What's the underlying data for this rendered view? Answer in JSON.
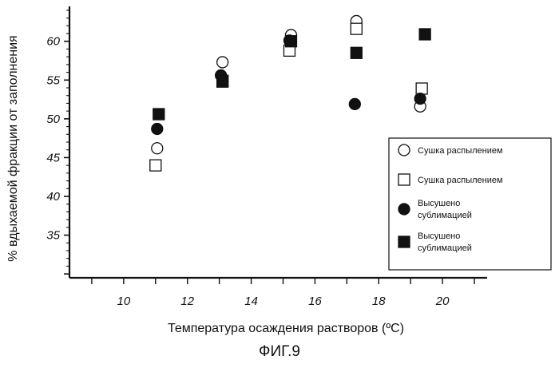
{
  "figure_caption": "ФИГ.9",
  "chart_data": {
    "type": "scatter",
    "xlabel": "Температура осаждения растворов (ºC)",
    "ylabel": "% вдыхаемой фракции от заполнения",
    "xlim": [
      8.3,
      21.4
    ],
    "ylim": [
      29.5,
      64.5
    ],
    "xticks": [
      10,
      12,
      14,
      16,
      18,
      20
    ],
    "yticks": [
      35,
      40,
      45,
      50,
      55,
      60
    ],
    "grid": false,
    "legend_position": "right",
    "series": [
      {
        "name": "Сушка распылением",
        "marker": "circle-open",
        "x": [
          11.05,
          13.1,
          15.25,
          17.3,
          19.3
        ],
        "y": [
          46.2,
          57.3,
          60.8,
          62.6,
          51.6
        ]
      },
      {
        "name": "Сушка распылением",
        "marker": "square-open",
        "x": [
          11.0,
          13.1,
          15.2,
          17.3,
          19.35
        ],
        "y": [
          44.0,
          54.8,
          58.8,
          61.6,
          53.9
        ]
      },
      {
        "name": "Высушено сублимацией",
        "marker": "circle-filled",
        "x": [
          11.05,
          13.05,
          15.2,
          17.25,
          19.3
        ],
        "y": [
          48.7,
          55.6,
          60.1,
          51.9,
          52.6
        ]
      },
      {
        "name": "Высушено сублимацией",
        "marker": "square-filled",
        "x": [
          11.1,
          13.1,
          15.25,
          17.3,
          19.45
        ],
        "y": [
          50.6,
          54.9,
          60.0,
          58.5,
          60.9
        ]
      }
    ]
  }
}
